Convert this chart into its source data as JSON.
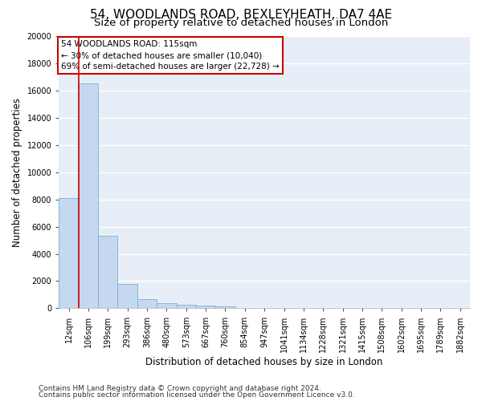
{
  "title": "54, WOODLANDS ROAD, BEXLEYHEATH, DA7 4AE",
  "subtitle": "Size of property relative to detached houses in London",
  "xlabel": "Distribution of detached houses by size in London",
  "ylabel": "Number of detached properties",
  "bar_color": "#c5d8ef",
  "bar_edge_color": "#7aafd4",
  "categories": [
    "12sqm",
    "106sqm",
    "199sqm",
    "293sqm",
    "386sqm",
    "480sqm",
    "573sqm",
    "667sqm",
    "760sqm",
    "854sqm",
    "947sqm",
    "1041sqm",
    "1134sqm",
    "1228sqm",
    "1321sqm",
    "1415sqm",
    "1508sqm",
    "1602sqm",
    "1695sqm",
    "1789sqm",
    "1882sqm"
  ],
  "values": [
    8100,
    16500,
    5300,
    1800,
    650,
    350,
    280,
    200,
    150,
    50,
    20,
    10,
    5,
    3,
    2,
    1,
    1,
    0,
    0,
    0,
    0
  ],
  "ylim": [
    0,
    20000
  ],
  "yticks": [
    0,
    2000,
    4000,
    6000,
    8000,
    10000,
    12000,
    14000,
    16000,
    18000,
    20000
  ],
  "vline_color": "#cc0000",
  "annotation_title": "54 WOODLANDS ROAD: 115sqm",
  "annotation_line1": "← 30% of detached houses are smaller (10,040)",
  "annotation_line2": "69% of semi-detached houses are larger (22,728) →",
  "annotation_box_color": "#ffffff",
  "annotation_box_edge_color": "#cc0000",
  "footer_line1": "Contains HM Land Registry data © Crown copyright and database right 2024.",
  "footer_line2": "Contains public sector information licensed under the Open Government Licence v3.0.",
  "background_color": "#e8eef7",
  "grid_color": "#ffffff",
  "fig_background": "#ffffff",
  "title_fontsize": 11,
  "subtitle_fontsize": 9.5,
  "tick_fontsize": 7,
  "ylabel_fontsize": 8.5,
  "xlabel_fontsize": 8.5,
  "annotation_fontsize": 7.5,
  "footer_fontsize": 6.5
}
